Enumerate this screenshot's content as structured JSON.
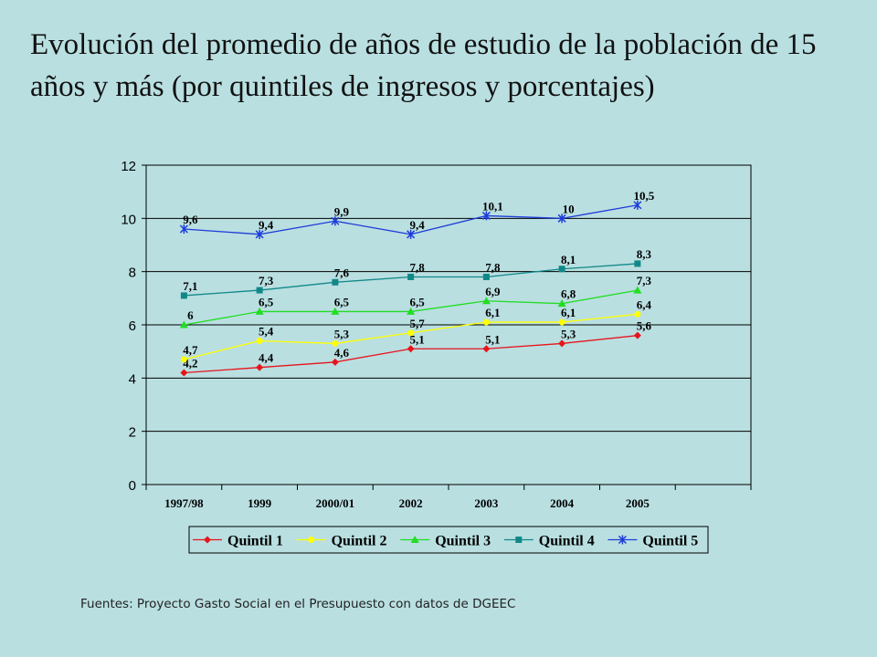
{
  "title": "Evolución del promedio de años de estudio de la población de 15 años y más (por quintiles de ingresos y porcentajes)",
  "source": "Fuentes: Proyecto Gasto Social en el Presupuesto con datos de DGEEC",
  "chart_data": {
    "type": "line",
    "categories": [
      "1997/98",
      "1999",
      "2000/01",
      "2002",
      "2003",
      "2004",
      "2005"
    ],
    "ylim": [
      0,
      12
    ],
    "yticks": [
      0,
      2,
      4,
      6,
      8,
      10,
      12
    ],
    "grid": true,
    "legend_position": "bottom",
    "series": [
      {
        "name": "Quintil 1",
        "color": "#e8141b",
        "marker": "diamond",
        "values": [
          4.2,
          4.4,
          4.6,
          5.1,
          5.1,
          5.3,
          5.6
        ],
        "labels": [
          "4,2",
          "4,4",
          "4,6",
          "5,1",
          "5,1",
          "5,3",
          "5,6"
        ]
      },
      {
        "name": "Quintil 2",
        "color": "#ffff00",
        "marker": "circle",
        "values": [
          4.7,
          5.4,
          5.3,
          5.7,
          6.1,
          6.1,
          6.4
        ],
        "labels": [
          "4,7",
          "5,4",
          "5,3",
          "5,7",
          "6,1",
          "6,1",
          "6,4"
        ]
      },
      {
        "name": "Quintil 3",
        "color": "#22dd22",
        "marker": "triangle",
        "values": [
          6.0,
          6.5,
          6.5,
          6.5,
          6.9,
          6.8,
          7.3
        ],
        "labels": [
          "6",
          "6,5",
          "6,5",
          "6,5",
          "6,9",
          "6,8",
          "7,3"
        ]
      },
      {
        "name": "Quintil 4",
        "color": "#118888",
        "marker": "square",
        "values": [
          7.1,
          7.3,
          7.6,
          7.8,
          7.8,
          8.1,
          8.3
        ],
        "labels": [
          "7,1",
          "7,3",
          "7,6",
          "7,8",
          "7,8",
          "8,1",
          "8,3"
        ]
      },
      {
        "name": "Quintil 5",
        "color": "#1e3cd8",
        "marker": "star",
        "values": [
          9.6,
          9.4,
          9.9,
          9.4,
          10.1,
          10.0,
          10.5
        ],
        "labels": [
          "9,6",
          "9,4",
          "9,9",
          "9,4",
          "10,1",
          "10",
          "10,5"
        ]
      }
    ]
  }
}
